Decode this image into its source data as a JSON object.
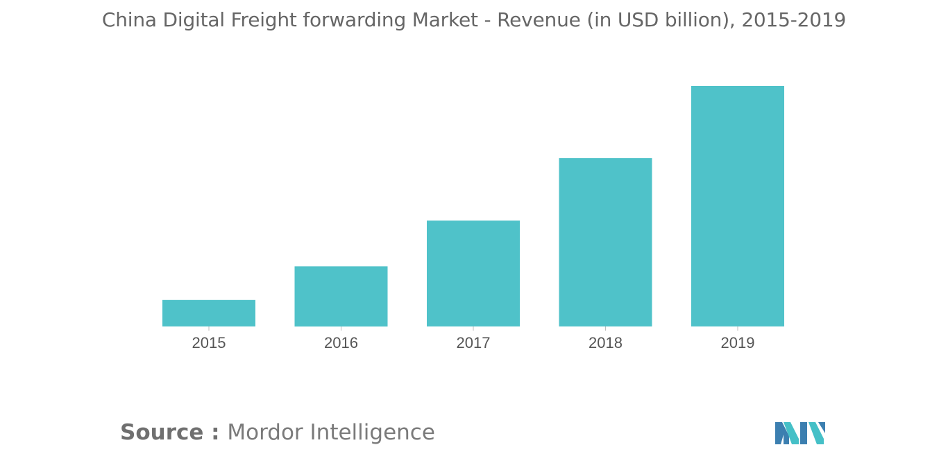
{
  "chart_data": {
    "type": "bar",
    "title": "China Digital Freight forwarding Market - Revenue (in USD billion), 2015-2019",
    "categories": [
      "2015",
      "2016",
      "2017",
      "2018",
      "2019"
    ],
    "values": [
      1.1,
      2.5,
      4.4,
      7.0,
      10.0
    ],
    "ylim": [
      0,
      10.0
    ],
    "xlabel": "",
    "ylabel": "",
    "grid": false,
    "legend": "none",
    "bar_color": "#4fc2c9"
  },
  "source": {
    "label": "Source",
    "separator": " : ",
    "text": "Mordor Intelligence"
  },
  "logo": {
    "icon": "mordor-intelligence-logo",
    "colors": [
      "#3c7fb0",
      "#45c0c7"
    ]
  }
}
